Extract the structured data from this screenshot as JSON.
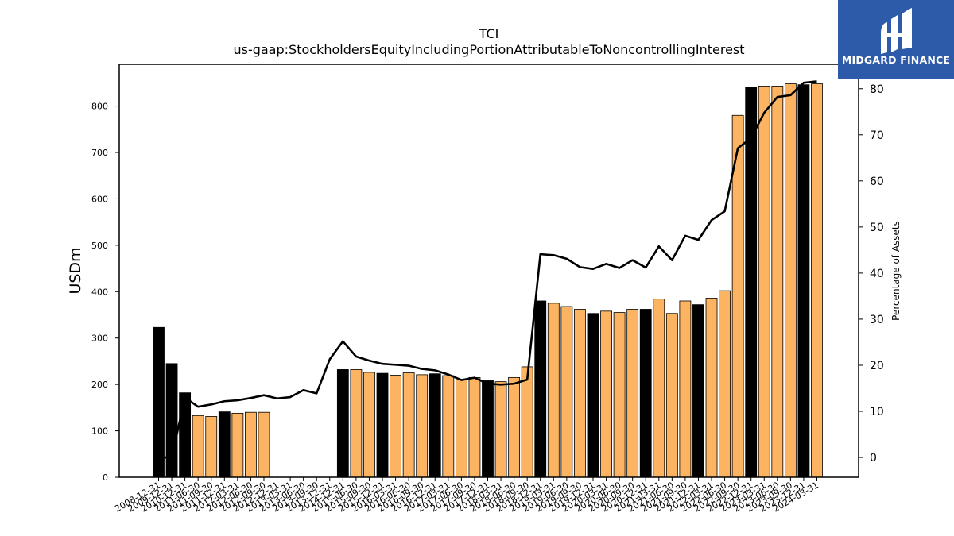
{
  "logo": {
    "text": "MIDGARD FINANCE",
    "bg_color": "#2d5aa9"
  },
  "chart_data": {
    "type": "bar",
    "title": "TCI",
    "subtitle": "us-gaap:StockholdersEquityIncludingPortionAttributableToNoncontrollingInterest",
    "ylabel": "USDm",
    "y2label": "Percentage of Assets",
    "ylim": [
      0,
      890
    ],
    "y2lim": [
      -4.3,
      85.3
    ],
    "yticks": [
      0,
      100,
      200,
      300,
      400,
      500,
      600,
      700,
      800
    ],
    "y2ticks": [
      0,
      10,
      20,
      30,
      40,
      50,
      60,
      70,
      80
    ],
    "grid": false,
    "bar_colors": {
      "annual": "#000000",
      "quarterly": "#fdb462"
    },
    "line_color": "#000000",
    "categories": [
      "2008-12-31",
      "2009-12-31",
      "2010-12-31",
      "2011-06-30",
      "2011-09-30",
      "2011-12-31",
      "2012-03-31",
      "2012-06-30",
      "2012-09-30",
      "2012-12-31",
      "2013-03-31",
      "2013-06-30",
      "2013-09-30",
      "2013-12-31",
      "2014-12-31",
      "2015-06-30",
      "2015-09-30",
      "2015-12-31",
      "2016-03-31",
      "2016-06-30",
      "2016-09-30",
      "2016-12-31",
      "2017-03-31",
      "2017-06-30",
      "2017-09-30",
      "2017-12-31",
      "2018-03-31",
      "2018-06-30",
      "2018-09-30",
      "2018-12-31",
      "2019-03-31",
      "2019-06-30",
      "2019-09-30",
      "2019-12-31",
      "2020-03-31",
      "2020-06-30",
      "2020-09-30",
      "2020-12-31",
      "2021-03-31",
      "2021-06-30",
      "2021-09-30",
      "2021-12-31",
      "2022-03-31",
      "2022-06-30",
      "2022-09-30",
      "2022-12-31",
      "2023-03-31",
      "2023-06-30",
      "2023-09-30",
      "2023-12-31",
      "2024-03-31"
    ],
    "series": [
      {
        "type": "bar",
        "values": [
          323,
          245,
          182,
          133,
          131,
          141,
          138,
          140,
          140,
          0,
          0,
          0,
          0,
          0,
          232,
          232,
          226,
          224,
          220,
          225,
          221,
          223,
          219,
          210,
          215,
          208,
          206,
          215,
          238,
          380,
          375,
          368,
          362,
          353,
          358,
          355,
          362,
          362,
          384,
          353,
          380,
          372,
          386,
          402,
          780,
          840,
          843,
          843,
          848,
          846,
          848
        ],
        "annual": [
          true,
          true,
          true,
          false,
          false,
          true,
          false,
          false,
          false,
          false,
          false,
          false,
          false,
          false,
          true,
          false,
          false,
          true,
          false,
          false,
          false,
          true,
          false,
          false,
          false,
          true,
          false,
          false,
          false,
          true,
          false,
          false,
          false,
          true,
          false,
          false,
          false,
          true,
          false,
          false,
          false,
          true,
          false,
          false,
          false,
          true,
          false,
          false,
          false,
          true,
          false
        ]
      },
      {
        "type": "line",
        "axis": "right",
        "values": [
          0,
          0,
          13.0,
          11.0,
          11.5,
          12.2,
          12.4,
          12.9,
          13.5,
          12.8,
          13.1,
          14.6,
          13.9,
          21.3,
          25.2,
          21.9,
          21.0,
          20.3,
          20.1,
          19.9,
          19.2,
          18.9,
          18.0,
          16.8,
          17.3,
          16.0,
          15.8,
          16.0,
          16.9,
          44.1,
          43.9,
          43.1,
          41.3,
          40.9,
          42.0,
          41.1,
          42.8,
          41.2,
          45.8,
          42.8,
          48.1,
          47.2,
          51.5,
          53.4,
          67.1,
          69.3,
          74.8,
          78.2,
          78.6,
          81.3,
          81.6
        ]
      }
    ]
  }
}
